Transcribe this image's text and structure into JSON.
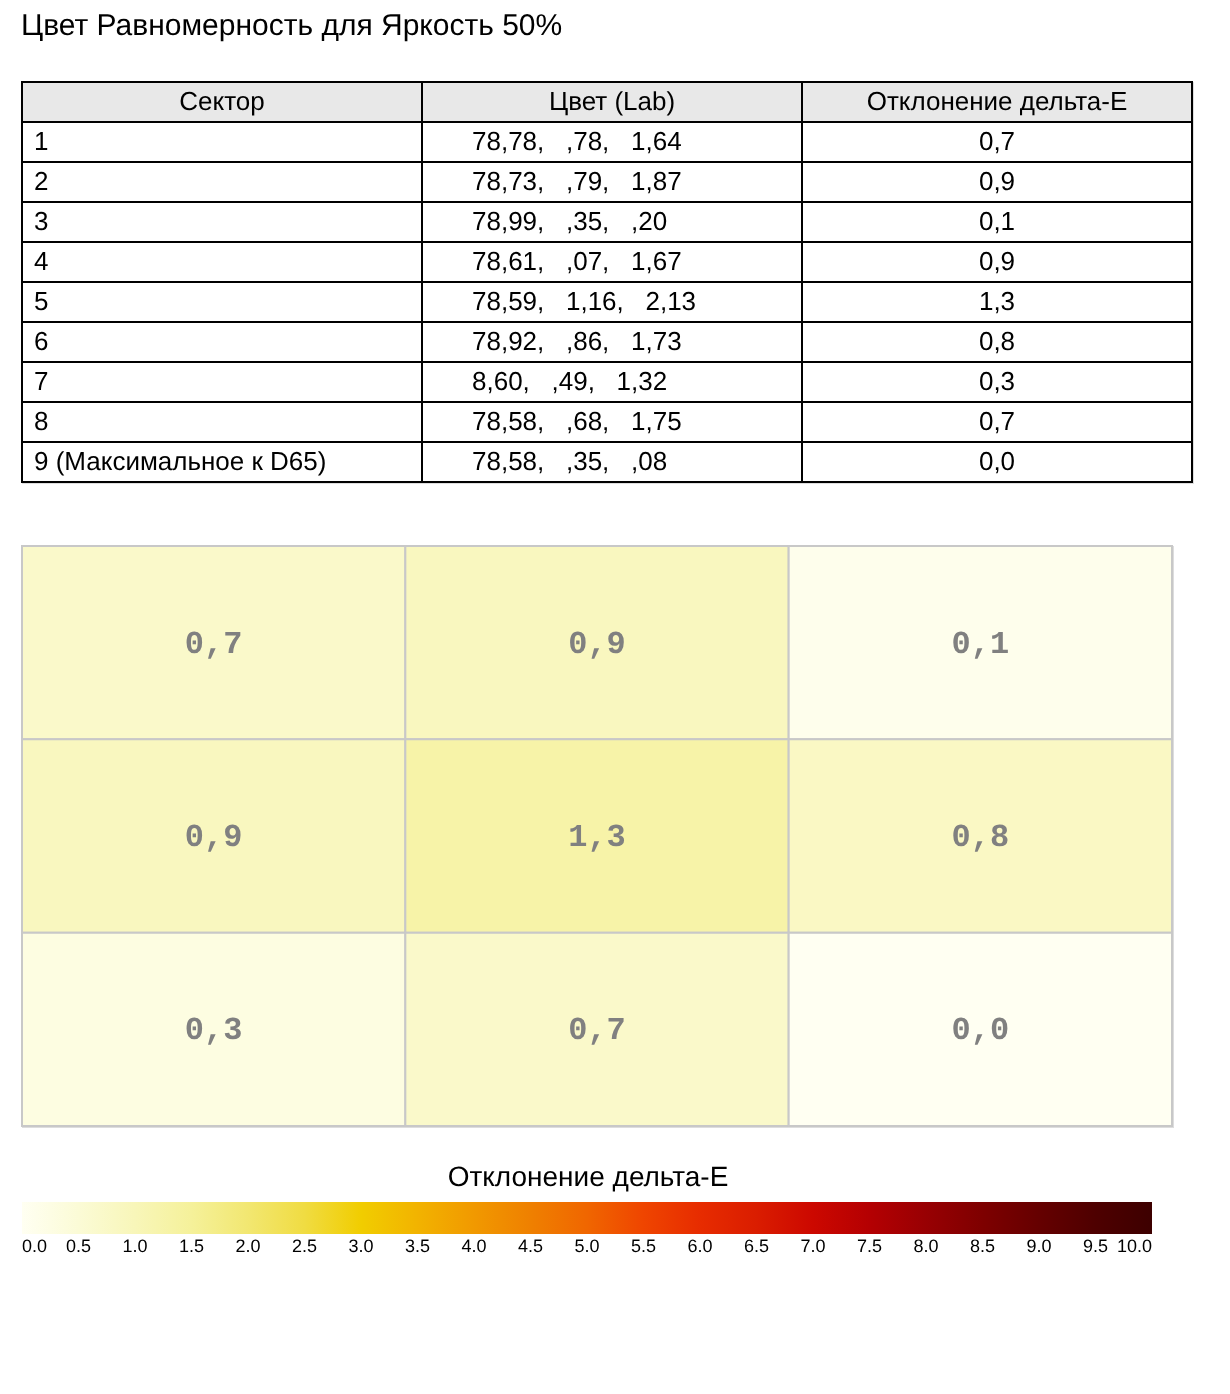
{
  "chart_data": {
    "type": "heatmap",
    "title": "Цвет Равномерность для Яркость 50%",
    "annotations": [
      "Сектор",
      "Цвет (Lab)",
      "Отклонение дельта-E",
      "1",
      "78,78,   ,78,   1,64",
      "0,7",
      "2",
      "78,73,   ,79,   1,87",
      "0,9",
      "3",
      "78,99,   ,35,   ,20",
      "0,1",
      "4",
      "78,61,   ,07,   1,67",
      "0,9",
      "5",
      "78,59,   1,16,   2,13",
      "1,3",
      "6",
      "78,92,   ,86,   1,73",
      "0,8",
      "7",
      "8,60,   ,49,   1,32",
      "0,3",
      "8",
      "78,58,   ,68,   1,75",
      "0,7",
      "9 (Максимальное к D65)",
      "78,58,   ,35,   ,08",
      "0,0"
    ],
    "categories": [
      null,
      null,
      null
    ],
    "y_categories": [
      null,
      null,
      null
    ],
    "cells": [
      [
        0.7,
        0.9,
        0.1
      ],
      [
        0.9,
        1.3,
        0.8
      ],
      [
        0.3,
        0.7,
        0.0
      ]
    ],
    "cell_labels": [
      [
        "0,7",
        "0,9",
        "0,1"
      ],
      [
        "0,9",
        "1,3",
        "0,8"
      ],
      [
        "0,3",
        "0,7",
        "0,0"
      ]
    ],
    "clabel": "Отклонение дельта-E",
    "clim": [
      0,
      10
    ],
    "cticks": [
      {
        "value": 0,
        "label": "0.0"
      },
      {
        "value": 0.5,
        "label": "0.5"
      },
      {
        "value": 1,
        "label": "1.0"
      },
      {
        "value": 1.5,
        "label": "1.5"
      },
      {
        "value": 2,
        "label": "2.0"
      },
      {
        "value": 2.5,
        "label": "2.5"
      },
      {
        "value": 3,
        "label": "3.0"
      },
      {
        "value": 3.5,
        "label": "3.5"
      },
      {
        "value": 4,
        "label": "4.0"
      },
      {
        "value": 4.5,
        "label": "4.5"
      },
      {
        "value": 5,
        "label": "5.0"
      },
      {
        "value": 5.5,
        "label": "5.5"
      },
      {
        "value": 6,
        "label": "6.0"
      },
      {
        "value": 6.5,
        "label": "6.5"
      },
      {
        "value": 7,
        "label": "7.0"
      },
      {
        "value": 7.5,
        "label": "7.5"
      },
      {
        "value": 8,
        "label": "8.0"
      },
      {
        "value": 8.5,
        "label": "8.5"
      },
      {
        "value": 9,
        "label": "9.0"
      },
      {
        "value": 9.5,
        "label": "9.5"
      },
      {
        "value": 10,
        "label": "10.0"
      }
    ],
    "tick_labels": false
  }
}
